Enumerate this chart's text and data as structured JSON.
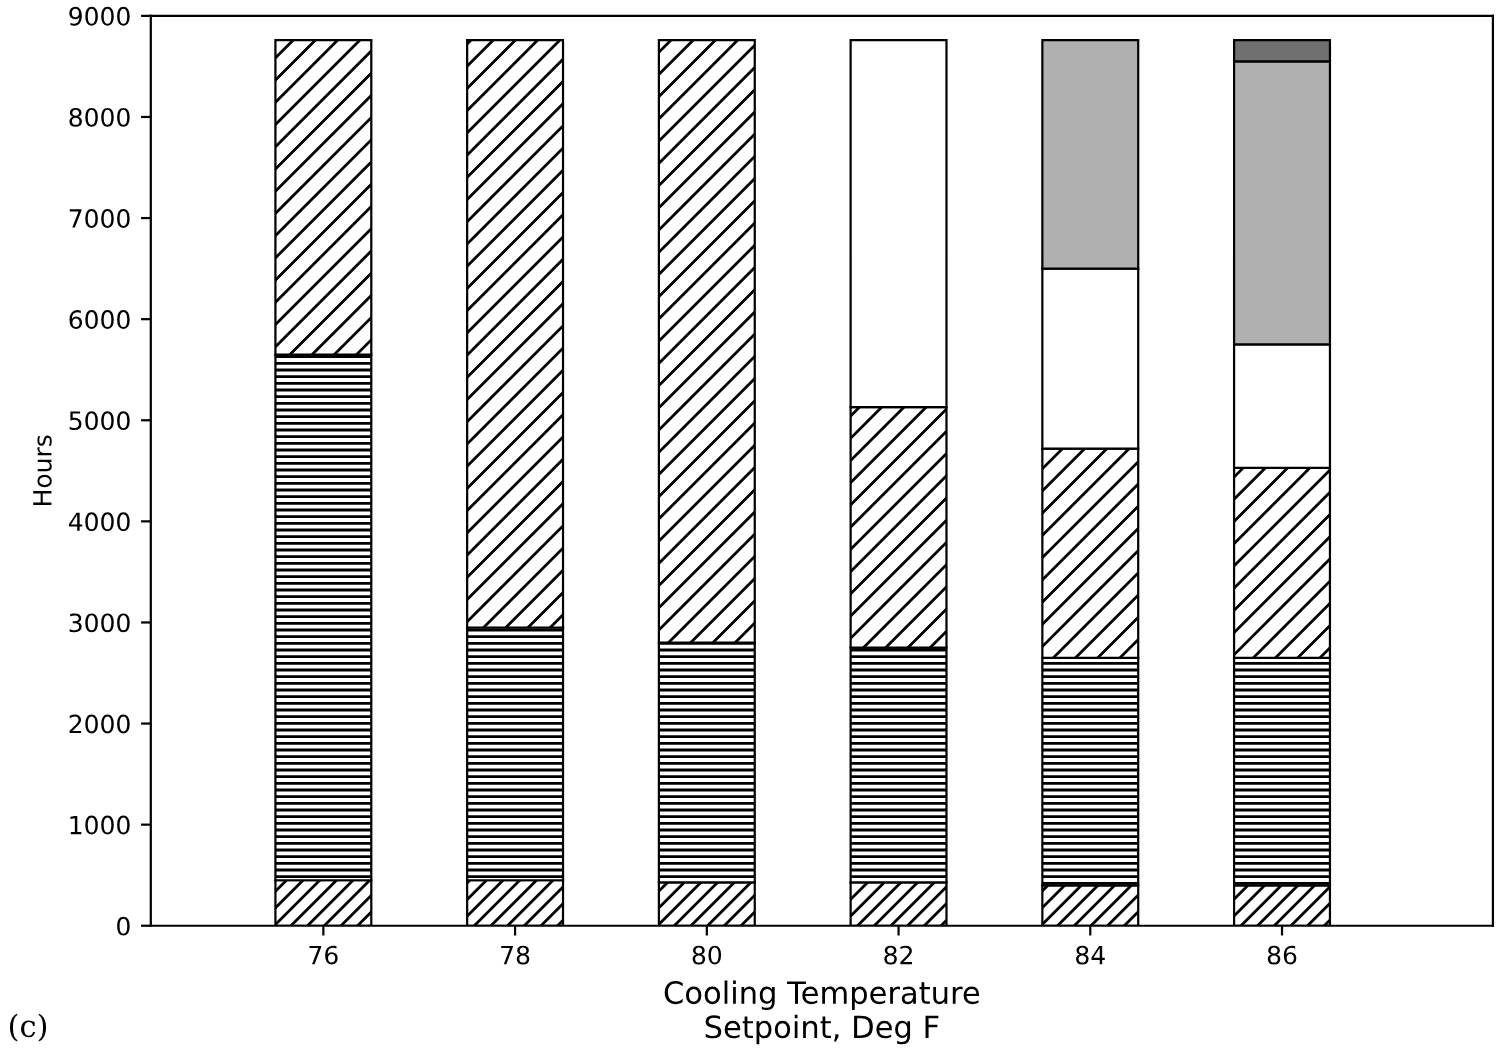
{
  "chart_data": {
    "type": "bar",
    "stacked": true,
    "xlabel": "Cooling Temperature\nSetpoint, Deg F",
    "ylabel": "Hours",
    "x": [
      76,
      78,
      80,
      82,
      84,
      86
    ],
    "series": [
      {
        "color": "#000000",
        "values": [
          450,
          450,
          430,
          430,
          400,
          400
        ]
      },
      {
        "color": "#000000",
        "values": [
          5200,
          2500,
          2370,
          2320,
          2250,
          2250
        ]
      },
      {
        "color": "#000000",
        "values": [
          3110,
          5810,
          5960,
          2380,
          2070,
          1880
        ]
      },
      {
        "color": "#ffffff",
        "values": [
          null,
          null,
          null,
          3630,
          1780,
          1220
        ]
      },
      {
        "color": "#b0b0b0",
        "values": [
          null,
          null,
          null,
          null,
          2260,
          2800
        ]
      },
      {
        "color": "#707070",
        "values": [
          null,
          null,
          null,
          null,
          null,
          210
        ]
      }
    ],
    "xlim": [
      74.2,
      88.2
    ],
    "xticks": [
      76,
      78,
      80,
      82,
      84,
      86
    ],
    "ylim": [
      0,
      9000
    ],
    "yticks": [
      0,
      1000,
      2000,
      3000,
      4000,
      5000,
      6000,
      7000,
      8000,
      9000
    ],
    "grid": false,
    "annotations": [
      "(c)"
    ]
  }
}
